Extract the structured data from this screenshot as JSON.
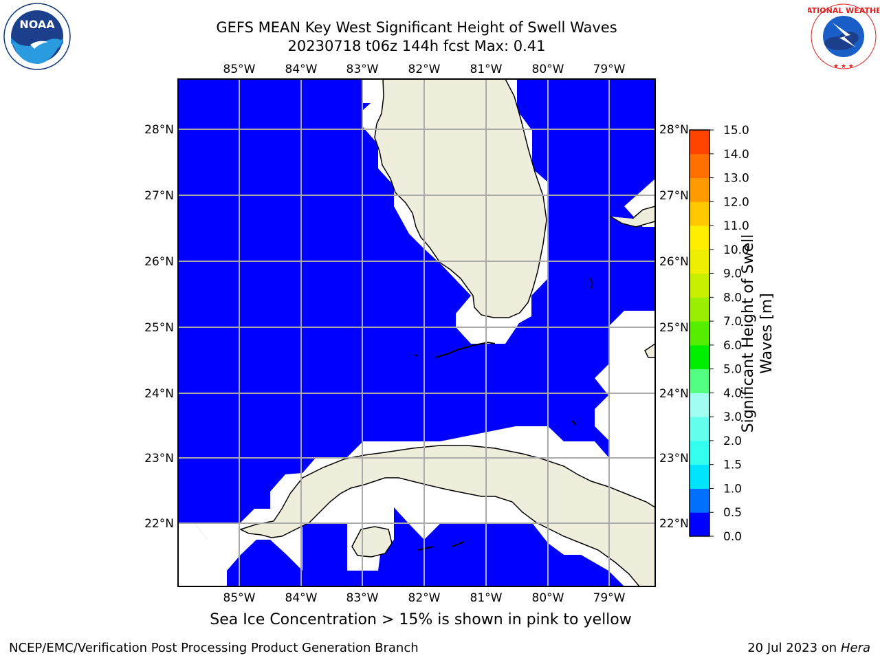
{
  "title": {
    "line1": "GEFS MEAN Key West Significant Height of Swell Waves",
    "line2": "20230718 t06z 144h fcst   Max: 0.41"
  },
  "axes": {
    "lon_labels": [
      "85°W",
      "84°W",
      "83°W",
      "82°W",
      "81°W",
      "80°W",
      "79°W"
    ],
    "lat_labels": [
      "28°N",
      "27°N",
      "26°N",
      "25°N",
      "24°N",
      "23°N",
      "22°N"
    ]
  },
  "colorbar": {
    "label": "Significant Height of Swell Waves [m]",
    "ticks": [
      "0.0",
      "0.5",
      "1.0",
      "1.5",
      "2.0",
      "3.0",
      "4.0",
      "5.0",
      "6.0",
      "7.0",
      "8.0",
      "9.0",
      "10.0",
      "11.0",
      "12.0",
      "13.0",
      "14.0",
      "15.0"
    ],
    "colors": [
      "#0000ff",
      "#0070ff",
      "#00e5ff",
      "#33ffee",
      "#66ffee",
      "#a0fff0",
      "#55ff80",
      "#00ee00",
      "#55ee00",
      "#9aee00",
      "#c8ee00",
      "#eeee00",
      "#ffee00",
      "#ffc800",
      "#ff9a00",
      "#ff7000",
      "#ff4400",
      "#ff0000"
    ]
  },
  "map": {
    "ocean_color": "#0000ff",
    "land_color": "#efeedc",
    "lon_range": [
      "86°W",
      "78.25°W"
    ],
    "lat_range": [
      "21°N",
      "28.75°N"
    ]
  },
  "note": "Sea Ice Concentration > 15% is shown in pink to yellow",
  "footer": {
    "left": "NCEP/EMC/Verification Post Processing Product Generation Branch",
    "right_prefix": "20 Jul 2023 on ",
    "right_host": "Hera"
  },
  "logos": {
    "noaa": "NOAA",
    "nws": "NATIONAL WEATHER SERVICE"
  }
}
